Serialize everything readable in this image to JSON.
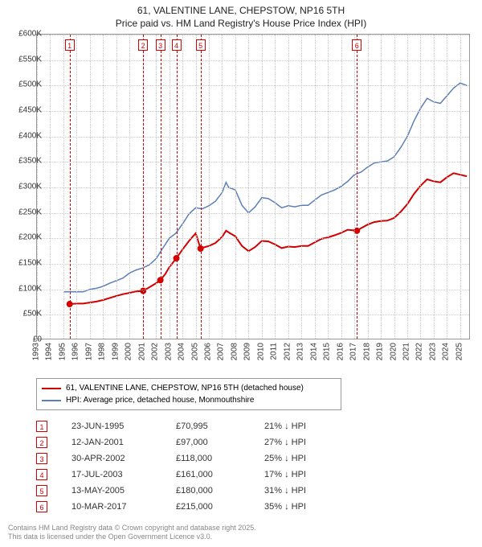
{
  "title": {
    "line1": "61, VALENTINE LANE, CHEPSTOW, NP16 5TH",
    "line2": "Price paid vs. HM Land Registry's House Price Index (HPI)"
  },
  "chart": {
    "ylim": [
      0,
      600000
    ],
    "ytick_step": 50000,
    "ytick_labels": [
      "£0",
      "£50K",
      "£100K",
      "£150K",
      "£200K",
      "£250K",
      "£300K",
      "£350K",
      "£400K",
      "£450K",
      "£500K",
      "£550K",
      "£600K"
    ],
    "x_years": [
      1993,
      1994,
      1995,
      1996,
      1997,
      1998,
      1999,
      2000,
      2001,
      2002,
      2003,
      2004,
      2005,
      2006,
      2007,
      2008,
      2009,
      2010,
      2011,
      2012,
      2013,
      2014,
      2015,
      2016,
      2017,
      2018,
      2019,
      2020,
      2021,
      2022,
      2023,
      2024,
      2025
    ],
    "xlim": [
      1993,
      2025.8
    ],
    "grid_color": "#cccccc",
    "background_color": "#ffffff",
    "axis_font_size": 10,
    "series": {
      "hpi": {
        "label": "HPI: Average price, detached house, Monmouthshire",
        "color": "#5b7fb8",
        "line_width": 1.5,
        "points": [
          [
            1995.0,
            95000
          ],
          [
            1995.5,
            95000
          ],
          [
            1996.0,
            95000
          ],
          [
            1996.5,
            95000
          ],
          [
            1997.0,
            100000
          ],
          [
            1997.5,
            102000
          ],
          [
            1998.0,
            106000
          ],
          [
            1998.5,
            112000
          ],
          [
            1999.0,
            117000
          ],
          [
            1999.5,
            122000
          ],
          [
            2000.0,
            132000
          ],
          [
            2000.5,
            138000
          ],
          [
            2001.0,
            142000
          ],
          [
            2001.5,
            148000
          ],
          [
            2002.0,
            160000
          ],
          [
            2002.5,
            180000
          ],
          [
            2003.0,
            200000
          ],
          [
            2003.5,
            210000
          ],
          [
            2004.0,
            228000
          ],
          [
            2004.5,
            248000
          ],
          [
            2005.0,
            260000
          ],
          [
            2005.5,
            258000
          ],
          [
            2006.0,
            264000
          ],
          [
            2006.5,
            273000
          ],
          [
            2007.0,
            290000
          ],
          [
            2007.3,
            310000
          ],
          [
            2007.5,
            300000
          ],
          [
            2008.0,
            295000
          ],
          [
            2008.5,
            265000
          ],
          [
            2009.0,
            250000
          ],
          [
            2009.5,
            262000
          ],
          [
            2010.0,
            280000
          ],
          [
            2010.5,
            278000
          ],
          [
            2011.0,
            270000
          ],
          [
            2011.5,
            260000
          ],
          [
            2012.0,
            264000
          ],
          [
            2012.5,
            262000
          ],
          [
            2013.0,
            265000
          ],
          [
            2013.5,
            265000
          ],
          [
            2014.0,
            275000
          ],
          [
            2014.5,
            285000
          ],
          [
            2015.0,
            290000
          ],
          [
            2015.5,
            295000
          ],
          [
            2016.0,
            302000
          ],
          [
            2016.5,
            312000
          ],
          [
            2017.0,
            325000
          ],
          [
            2017.5,
            330000
          ],
          [
            2018.0,
            340000
          ],
          [
            2018.5,
            348000
          ],
          [
            2019.0,
            350000
          ],
          [
            2019.5,
            352000
          ],
          [
            2020.0,
            360000
          ],
          [
            2020.5,
            378000
          ],
          [
            2021.0,
            400000
          ],
          [
            2021.5,
            430000
          ],
          [
            2022.0,
            455000
          ],
          [
            2022.5,
            475000
          ],
          [
            2023.0,
            468000
          ],
          [
            2023.5,
            465000
          ],
          [
            2024.0,
            480000
          ],
          [
            2024.5,
            495000
          ],
          [
            2025.0,
            505000
          ],
          [
            2025.5,
            500000
          ]
        ]
      },
      "price_paid": {
        "label": "61, VALENTINE LANE, CHEPSTOW, NP16 5TH (detached house)",
        "color": "#d30000",
        "line_width": 2,
        "marker_color": "#d30000",
        "marker_size": 4,
        "points": [
          [
            1995.47,
            70995
          ],
          [
            1996.0,
            72000
          ],
          [
            1996.5,
            72000
          ],
          [
            1997.0,
            74000
          ],
          [
            1997.5,
            76000
          ],
          [
            1998.0,
            79000
          ],
          [
            1998.5,
            83000
          ],
          [
            1999.0,
            87000
          ],
          [
            1999.5,
            90500
          ],
          [
            2000.0,
            93000
          ],
          [
            2000.5,
            96000
          ],
          [
            2001.03,
            97000
          ],
          [
            2001.5,
            104000
          ],
          [
            2002.0,
            112000
          ],
          [
            2002.33,
            118000
          ],
          [
            2002.7,
            130000
          ],
          [
            2003.0,
            143000
          ],
          [
            2003.54,
            161000
          ],
          [
            2004.0,
            178000
          ],
          [
            2004.5,
            195000
          ],
          [
            2005.0,
            210000
          ],
          [
            2005.37,
            180000
          ],
          [
            2005.7,
            183000
          ],
          [
            2006.0,
            185000
          ],
          [
            2006.5,
            191000
          ],
          [
            2007.0,
            203000
          ],
          [
            2007.3,
            215000
          ],
          [
            2007.6,
            210000
          ],
          [
            2008.0,
            204000
          ],
          [
            2008.5,
            185000
          ],
          [
            2009.0,
            175000
          ],
          [
            2009.5,
            183000
          ],
          [
            2010.0,
            195000
          ],
          [
            2010.5,
            194000
          ],
          [
            2011.0,
            188000
          ],
          [
            2011.5,
            181000
          ],
          [
            2012.0,
            184000
          ],
          [
            2012.5,
            183000
          ],
          [
            2013.0,
            185000
          ],
          [
            2013.5,
            185000
          ],
          [
            2014.0,
            192000
          ],
          [
            2014.5,
            199000
          ],
          [
            2015.0,
            202000
          ],
          [
            2015.5,
            206000
          ],
          [
            2016.0,
            211000
          ],
          [
            2016.5,
            217000
          ],
          [
            2017.19,
            215000
          ],
          [
            2017.5,
            220000
          ],
          [
            2018.0,
            227000
          ],
          [
            2018.5,
            232000
          ],
          [
            2019.0,
            234000
          ],
          [
            2019.5,
            235000
          ],
          [
            2020.0,
            240000
          ],
          [
            2020.5,
            252000
          ],
          [
            2021.0,
            267000
          ],
          [
            2021.5,
            287000
          ],
          [
            2022.0,
            303000
          ],
          [
            2022.5,
            316000
          ],
          [
            2023.0,
            312000
          ],
          [
            2023.5,
            310000
          ],
          [
            2024.0,
            320000
          ],
          [
            2024.5,
            328000
          ],
          [
            2025.0,
            325000
          ],
          [
            2025.5,
            322000
          ]
        ],
        "sale_markers": [
          {
            "n": "1",
            "year": 1995.47,
            "value": 70995,
            "line_color": "#d30000"
          },
          {
            "n": "2",
            "year": 2001.03,
            "value": 97000,
            "line_color": "#d30000"
          },
          {
            "n": "3",
            "year": 2002.33,
            "value": 118000,
            "line_color": "#d30000"
          },
          {
            "n": "4",
            "year": 2003.54,
            "value": 161000,
            "line_color": "#d30000"
          },
          {
            "n": "5",
            "year": 2005.37,
            "value": 180000,
            "line_color": "#d30000"
          },
          {
            "n": "6",
            "year": 2017.19,
            "value": 215000,
            "line_color": "#d30000"
          }
        ]
      }
    }
  },
  "legend": {
    "border_color": "#999999"
  },
  "sales_table": {
    "rows": [
      {
        "n": "1",
        "date": "23-JUN-1995",
        "price": "£70,995",
        "pct": "21% ↓ HPI"
      },
      {
        "n": "2",
        "date": "12-JAN-2001",
        "price": "£97,000",
        "pct": "27% ↓ HPI"
      },
      {
        "n": "3",
        "date": "30-APR-2002",
        "price": "£118,000",
        "pct": "25% ↓ HPI"
      },
      {
        "n": "4",
        "date": "17-JUL-2003",
        "price": "£161,000",
        "pct": "17% ↓ HPI"
      },
      {
        "n": "5",
        "date": "13-MAY-2005",
        "price": "£180,000",
        "pct": "31% ↓ HPI"
      },
      {
        "n": "6",
        "date": "10-MAR-2017",
        "price": "£215,000",
        "pct": "35% ↓ HPI"
      }
    ]
  },
  "footer": {
    "line1": "Contains HM Land Registry data © Crown copyright and database right 2025.",
    "line2": "This data is licensed under the Open Government Licence v3.0."
  }
}
